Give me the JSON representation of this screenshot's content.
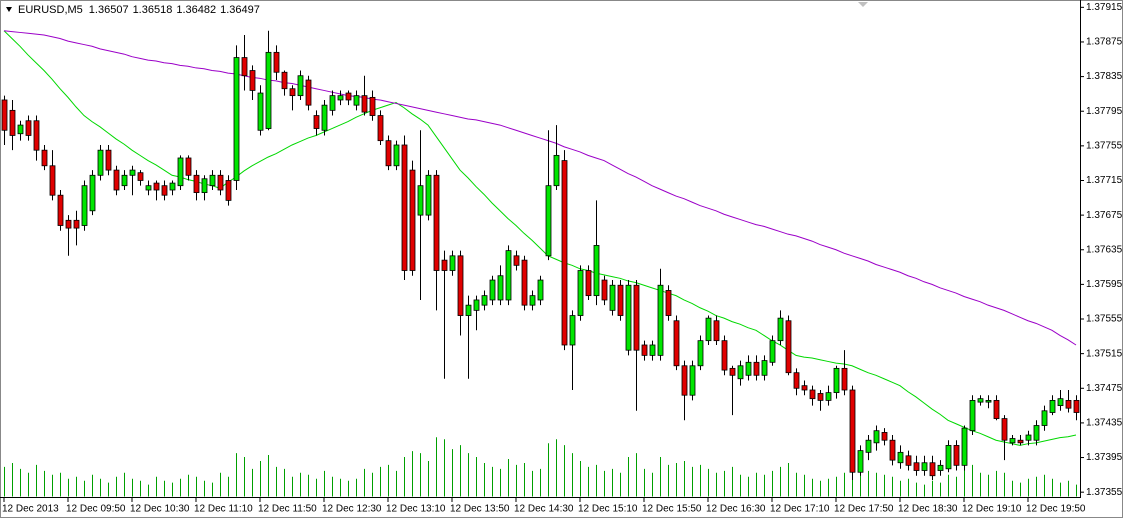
{
  "chart_data": {
    "type": "candlestick",
    "title": "EURUSD,M5",
    "last_quote": [
      1.36507,
      1.36518,
      1.36482,
      1.36497
    ],
    "categories": [
      "12 Dec 2013",
      null,
      null,
      null,
      null,
      null,
      null,
      null,
      "12 Dec 09:50",
      null,
      null,
      null,
      null,
      null,
      null,
      null,
      "12 Dec 10:30",
      null,
      null,
      null,
      null,
      null,
      null,
      null,
      "12 Dec 11:10",
      null,
      null,
      null,
      null,
      null,
      null,
      null,
      "12 Dec 11:50",
      null,
      null,
      null,
      null,
      null,
      null,
      null,
      "12 Dec 12:30",
      null,
      null,
      null,
      null,
      null,
      null,
      null,
      "12 Dec 13:10",
      null,
      null,
      null,
      null,
      null,
      null,
      null,
      "12 Dec 13:50",
      null,
      null,
      null,
      null,
      null,
      null,
      null,
      "12 Dec 14:30",
      null,
      null,
      null,
      null,
      null,
      null,
      null,
      "12 Dec 15:10",
      null,
      null,
      null,
      null,
      null,
      null,
      null,
      "12 Dec 15:50",
      null,
      null,
      null,
      null,
      null,
      null,
      null,
      "12 Dec 16:30",
      null,
      null,
      null,
      null,
      null,
      null,
      null,
      "12 Dec 17:10",
      null,
      null,
      null,
      null,
      null,
      null,
      null,
      "12 Dec 17:50",
      null,
      null,
      null,
      null,
      null,
      null,
      null,
      "12 Dec 18:30",
      null,
      null,
      null,
      null,
      null,
      null,
      null,
      "12 Dec 19:10",
      null,
      null,
      null,
      null,
      null,
      null,
      null,
      "12 Dec 19:50",
      null,
      null,
      null,
      null,
      null,
      null
    ],
    "open": [
      1.37808,
      1.37796,
      1.37769,
      1.37784,
      1.37784,
      1.3775,
      1.37732,
      1.37698,
      1.37669,
      1.37669,
      1.37663,
      1.3768,
      1.37721,
      1.3775,
      1.37727,
      1.37709,
      1.37721,
      1.37724,
      1.37704,
      1.37712,
      1.37709,
      1.37704,
      1.37709,
      1.37741,
      1.37721,
      1.37701,
      1.37709,
      1.37721,
      1.37715,
      1.37715,
      1.37857,
      1.37842,
      1.37773,
      1.37775,
      1.37863,
      1.3784,
      1.37821,
      1.37813,
      1.37831,
      1.3779,
      1.37773,
      1.37796,
      1.37808,
      1.37816,
      1.37802,
      1.37813,
      1.37811,
      1.3779,
      1.37761,
      1.37732,
      1.37756,
      1.37727,
      1.37675,
      1.37675,
      1.37721,
      1.37623,
      1.37611,
      1.37628,
      1.37559,
      1.37565,
      1.37571,
      1.37577,
      1.37577,
      1.37577,
      1.37628,
      1.37623,
      1.37571,
      1.37577,
      1.37628,
      1.37709,
      1.37738,
      1.37525,
      1.37559,
      1.37611,
      1.37582,
      1.376,
      1.37565,
      1.37594,
      1.37519,
      1.37594,
      1.37525,
      1.37513,
      1.37513,
      1.37588,
      1.37553,
      1.37501,
      1.37467,
      1.37501,
      1.3753,
      1.37553,
      1.3753,
      1.37498,
      1.37486,
      1.3749,
      1.37505,
      1.3749,
      1.37505,
      1.3753,
      1.37553,
      1.37493,
      1.37478,
      1.37473,
      1.37469,
      1.37461,
      1.3747,
      1.37498,
      1.37473,
      1.37378,
      1.37401,
      1.37412,
      1.37424,
      1.37415,
      1.37389,
      1.37397,
      1.37389,
      1.3738,
      1.37389,
      1.3738,
      1.37382,
      1.37409,
      1.37386,
      1.37426,
      1.37459,
      1.37459,
      1.37461,
      1.3744,
      1.37412,
      1.37415,
      1.37415,
      1.37415,
      1.37432,
      1.37447,
      1.37455,
      1.37461,
      1.37461
    ],
    "high": [
      1.37813,
      1.37808,
      1.37784,
      1.3779,
      1.3779,
      1.37756,
      1.3775,
      1.37704,
      1.37675,
      1.3768,
      1.37715,
      1.37727,
      1.37756,
      1.37756,
      1.37732,
      1.37727,
      1.37732,
      1.37727,
      1.37715,
      1.37715,
      1.37715,
      1.37715,
      1.37744,
      1.37744,
      1.37727,
      1.37721,
      1.37727,
      1.37727,
      1.37721,
      1.37871,
      1.37883,
      1.37848,
      1.37825,
      1.37888,
      1.37871,
      1.37842,
      1.37825,
      1.37842,
      1.37836,
      1.37796,
      1.37808,
      1.37819,
      1.37819,
      1.37819,
      1.37819,
      1.37836,
      1.37819,
      1.37796,
      1.37767,
      1.37761,
      1.37767,
      1.37738,
      1.37773,
      1.37727,
      1.37727,
      1.37634,
      1.37634,
      1.37634,
      1.37582,
      1.37582,
      1.37588,
      1.37605,
      1.37617,
      1.3764,
      1.37634,
      1.37628,
      1.37588,
      1.37605,
      1.37773,
      1.37779,
      1.3775,
      1.37565,
      1.37617,
      1.37617,
      1.37692,
      1.37605,
      1.376,
      1.376,
      1.376,
      1.376,
      1.3753,
      1.3753,
      1.37613,
      1.37594,
      1.37559,
      1.37507,
      1.37507,
      1.37536,
      1.37559,
      1.37559,
      1.37536,
      1.37501,
      1.37507,
      1.37513,
      1.37513,
      1.37513,
      1.37536,
      1.37565,
      1.37559,
      1.37498,
      1.37484,
      1.37478,
      1.37473,
      1.37478,
      1.37501,
      1.37519,
      1.37478,
      1.37409,
      1.37421,
      1.37432,
      1.37429,
      1.37421,
      1.37409,
      1.37403,
      1.37397,
      1.37397,
      1.37397,
      1.37392,
      1.37415,
      1.37415,
      1.37432,
      1.37467,
      1.37467,
      1.37467,
      1.37467,
      1.37444,
      1.37421,
      1.37421,
      1.37426,
      1.37438,
      1.37455,
      1.37467,
      1.37473,
      1.37473,
      1.37467
    ],
    "low": [
      1.37756,
      1.3775,
      1.37761,
      1.37761,
      1.37738,
      1.37727,
      1.37692,
      1.37657,
      1.37628,
      1.3764,
      1.37657,
      1.37675,
      1.37715,
      1.37721,
      1.37698,
      1.37704,
      1.37698,
      1.37709,
      1.37698,
      1.37692,
      1.37692,
      1.37698,
      1.37704,
      1.37715,
      1.37692,
      1.37692,
      1.37704,
      1.37698,
      1.37686,
      1.37704,
      1.37819,
      1.37808,
      1.37767,
      1.37773,
      1.37831,
      1.37813,
      1.37796,
      1.37808,
      1.37796,
      1.37767,
      1.37767,
      1.3779,
      1.37802,
      1.37802,
      1.37796,
      1.3779,
      1.37784,
      1.37756,
      1.37727,
      1.37727,
      1.376,
      1.37605,
      1.37577,
      1.37669,
      1.37565,
      1.37486,
      1.37605,
      1.37536,
      1.37486,
      1.37542,
      1.37565,
      1.37571,
      1.37571,
      1.37571,
      1.37611,
      1.37565,
      1.37565,
      1.37571,
      1.37623,
      1.37704,
      1.37519,
      1.37473,
      1.37553,
      1.37577,
      1.37571,
      1.37571,
      1.37559,
      1.37553,
      1.37513,
      1.37449,
      1.37507,
      1.37507,
      1.37507,
      1.37553,
      1.37496,
      1.37438,
      1.37461,
      1.37496,
      1.37525,
      1.37525,
      1.3749,
      1.37444,
      1.37478,
      1.37484,
      1.37484,
      1.37484,
      1.37501,
      1.37525,
      1.3749,
      1.37467,
      1.37467,
      1.37455,
      1.37449,
      1.37455,
      1.37463,
      1.37467,
      1.37369,
      1.37374,
      1.37392,
      1.37403,
      1.37409,
      1.37386,
      1.37382,
      1.3738,
      1.37374,
      1.37374,
      1.37369,
      1.37374,
      1.37378,
      1.3738,
      1.3738,
      1.37421,
      1.37455,
      1.37452,
      1.37438,
      1.37392,
      1.37409,
      1.37409,
      1.37409,
      1.37409,
      1.37426,
      1.37444,
      1.37449,
      1.37447,
      1.37438
    ],
    "close": [
      1.37773,
      1.37767,
      1.37779,
      1.37767,
      1.3775,
      1.37732,
      1.37698,
      1.37663,
      1.3766,
      1.3766,
      1.37709,
      1.37721,
      1.3775,
      1.37727,
      1.37704,
      1.37721,
      1.37727,
      1.37715,
      1.37709,
      1.37704,
      1.37698,
      1.37712,
      1.37741,
      1.37721,
      1.37701,
      1.37717,
      1.37721,
      1.37704,
      1.37692,
      1.37857,
      1.37836,
      1.37819,
      1.37816,
      1.37863,
      1.3784,
      1.37821,
      1.37813,
      1.37836,
      1.37802,
      1.37775,
      1.37802,
      1.37813,
      1.37813,
      1.37808,
      1.37813,
      1.37794,
      1.3779,
      1.37761,
      1.37732,
      1.37756,
      1.37611,
      1.37611,
      1.37709,
      1.37721,
      1.37611,
      1.37611,
      1.37628,
      1.37559,
      1.37571,
      1.37577,
      1.37582,
      1.376,
      1.37605,
      1.37634,
      1.37617,
      1.37571,
      1.37582,
      1.376,
      1.37709,
      1.37744,
      1.37525,
      1.37559,
      1.37611,
      1.37582,
      1.3764,
      1.37577,
      1.37594,
      1.37559,
      1.37594,
      1.37519,
      1.37513,
      1.37525,
      1.37594,
      1.37559,
      1.37501,
      1.37467,
      1.37501,
      1.3753,
      1.37556,
      1.3753,
      1.37496,
      1.3749,
      1.37501,
      1.37505,
      1.3749,
      1.37507,
      1.3753,
      1.37556,
      1.37493,
      1.37475,
      1.37473,
      1.37463,
      1.37461,
      1.3747,
      1.37498,
      1.37473,
      1.37378,
      1.37403,
      1.37415,
      1.37426,
      1.37415,
      1.37392,
      1.37401,
      1.37386,
      1.3738,
      1.37389,
      1.37374,
      1.37386,
      1.37409,
      1.37386,
      1.37429,
      1.37461,
      1.37463,
      1.37461,
      1.3744,
      1.37415,
      1.37417,
      1.37412,
      1.37421,
      1.37432,
      1.37449,
      1.37461,
      1.37463,
      1.37452,
      1.37447
    ],
    "volume": [
      15,
      17,
      14,
      12,
      16,
      13,
      11,
      12,
      9,
      10,
      8,
      11,
      9,
      7,
      10,
      12,
      9,
      8,
      6,
      10,
      8,
      7,
      9,
      11,
      10,
      8,
      7,
      12,
      10,
      22,
      20,
      14,
      18,
      21,
      15,
      14,
      10,
      12,
      11,
      9,
      13,
      10,
      9,
      8,
      9,
      14,
      12,
      15,
      16,
      13,
      20,
      23,
      22,
      18,
      30,
      29,
      24,
      26,
      22,
      20,
      17,
      15,
      14,
      19,
      16,
      17,
      13,
      14,
      27,
      29,
      26,
      22,
      18,
      15,
      16,
      13,
      14,
      12,
      20,
      22,
      14,
      12,
      20,
      16,
      17,
      18,
      15,
      16,
      14,
      12,
      13,
      15,
      11,
      10,
      12,
      11,
      13,
      15,
      17,
      12,
      11,
      9,
      8,
      9,
      10,
      12,
      20,
      16,
      13,
      12,
      11,
      10,
      8,
      9,
      7,
      6,
      8,
      7,
      11,
      10,
      18,
      16,
      12,
      11,
      13,
      12,
      8,
      7,
      9,
      10,
      11,
      9,
      7,
      8,
      6
    ],
    "volume_lim": [
      0,
      250
    ],
    "volume_color": "#00a000",
    "up_color": "#00e600",
    "down_color": "#e00000",
    "moving_averages": [
      {
        "color": "#00d800",
        "values": [
          1.37888,
          1.37879,
          1.3787,
          1.3786,
          1.37851,
          1.37842,
          1.37832,
          1.37821,
          1.37811,
          1.378,
          1.3779,
          1.37783,
          1.37777,
          1.3777,
          1.37763,
          1.37757,
          1.3775,
          1.37744,
          1.37738,
          1.37733,
          1.37727,
          1.37721,
          1.37719,
          1.37716,
          1.37714,
          1.37711,
          1.37709,
          1.37706,
          1.37713,
          1.37719,
          1.37726,
          1.37732,
          1.37737,
          1.37742,
          1.37746,
          1.37751,
          1.37756,
          1.3776,
          1.37764,
          1.37767,
          1.37771,
          1.37775,
          1.37779,
          1.37783,
          1.37788,
          1.37792,
          1.37796,
          1.37799,
          1.37802,
          1.37805,
          1.37799,
          1.37792,
          1.37786,
          1.37779,
          1.37766,
          1.37753,
          1.3774,
          1.37727,
          1.37718,
          1.37708,
          1.37699,
          1.37689,
          1.3768,
          1.37671,
          1.37663,
          1.37654,
          1.37646,
          1.37637,
          1.37628,
          1.37624,
          1.3762,
          1.37617,
          1.37613,
          1.37611,
          1.37608,
          1.37606,
          1.37604,
          1.37602,
          1.37599,
          1.37597,
          1.37594,
          1.37591,
          1.37588,
          1.37585,
          1.37582,
          1.37577,
          1.37573,
          1.37568,
          1.37564,
          1.37559,
          1.37556,
          1.37552,
          1.37549,
          1.37545,
          1.37542,
          1.37536,
          1.3753,
          1.37525,
          1.37519,
          1.37513,
          1.37511,
          1.3751,
          1.37508,
          1.37506,
          1.37504,
          1.37503,
          1.37501,
          1.37497,
          1.37493,
          1.3749,
          1.37486,
          1.37482,
          1.37478,
          1.37471,
          1.37465,
          1.37458,
          1.37451,
          1.37445,
          1.37438,
          1.37434,
          1.3743,
          1.37426,
          1.37423,
          1.37419,
          1.37415,
          1.37413,
          1.37411,
          1.37409,
          1.37411,
          1.37412,
          1.37414,
          1.37416,
          1.37418,
          1.37419,
          1.37421
        ]
      },
      {
        "color": "#9b00c8",
        "values": [
          1.37888,
          1.37887,
          1.37886,
          1.37885,
          1.37884,
          1.37883,
          1.37881,
          1.37879,
          1.37876,
          1.37874,
          1.37872,
          1.3787,
          1.37867,
          1.37865,
          1.37863,
          1.37861,
          1.37858,
          1.37856,
          1.37854,
          1.37853,
          1.37851,
          1.3785,
          1.37848,
          1.37847,
          1.37845,
          1.37844,
          1.37842,
          1.37841,
          1.37839,
          1.37838,
          1.37836,
          1.37834,
          1.37833,
          1.37831,
          1.3783,
          1.37828,
          1.37827,
          1.37825,
          1.37823,
          1.37821,
          1.37819,
          1.37817,
          1.37815,
          1.37813,
          1.37812,
          1.37811,
          1.37809,
          1.37808,
          1.37806,
          1.37804,
          1.37802,
          1.378,
          1.37798,
          1.37796,
          1.37794,
          1.37792,
          1.3779,
          1.37788,
          1.37786,
          1.37785,
          1.37783,
          1.37781,
          1.37779,
          1.37776,
          1.37773,
          1.3777,
          1.37767,
          1.37764,
          1.37761,
          1.37758,
          1.37754,
          1.37751,
          1.37748,
          1.37744,
          1.37741,
          1.37738,
          1.37733,
          1.37728,
          1.37723,
          1.37719,
          1.37714,
          1.37709,
          1.37705,
          1.37701,
          1.37697,
          1.37694,
          1.3769,
          1.37686,
          1.37683,
          1.3768,
          1.37676,
          1.37673,
          1.3767,
          1.37667,
          1.37664,
          1.37662,
          1.37659,
          1.37656,
          1.37653,
          1.37651,
          1.37648,
          1.37645,
          1.37641,
          1.37638,
          1.37635,
          1.37631,
          1.37628,
          1.37625,
          1.37622,
          1.37618,
          1.37615,
          1.37612,
          1.37609,
          1.37605,
          1.37602,
          1.37598,
          1.37595,
          1.37591,
          1.37588,
          1.37585,
          1.37581,
          1.37578,
          1.37575,
          1.37571,
          1.37568,
          1.37565,
          1.37561,
          1.37557,
          1.37553,
          1.3755,
          1.37546,
          1.37542,
          1.37536,
          1.37531,
          1.37525
        ]
      }
    ],
    "ylim": [
      1.3735,
      1.3792
    ],
    "yticks": [
      1.37915,
      1.37875,
      1.37835,
      1.37795,
      1.37755,
      1.37715,
      1.37675,
      1.37635,
      1.37595,
      1.37555,
      1.37515,
      1.37475,
      1.37435,
      1.37395,
      1.37355
    ],
    "grid": false
  }
}
